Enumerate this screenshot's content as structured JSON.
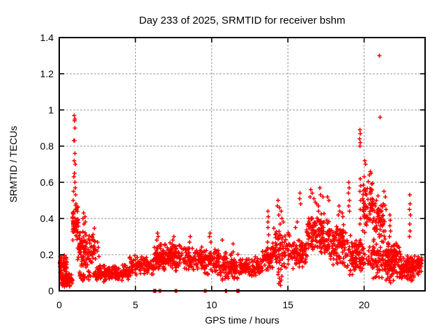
{
  "chart_data": {
    "type": "scatter",
    "title": "Day 233 of 2025, SRMTID for receiver bshm",
    "xlabel": "GPS time / hours",
    "ylabel": "SRMTID / TECUs",
    "xlim": [
      0,
      24
    ],
    "ylim": [
      0,
      1.4
    ],
    "xticks": [
      "0",
      "5",
      "10",
      "15",
      "20"
    ],
    "xtick_values": [
      0,
      5,
      10,
      15,
      20
    ],
    "yticks": [
      "0",
      "0.2",
      "0.4",
      "0.6",
      "0.8",
      "1",
      "1.2",
      "1.4"
    ],
    "ytick_values": [
      0,
      0.2,
      0.4,
      0.6,
      0.8,
      1.0,
      1.2,
      1.4
    ],
    "grid": "dashed",
    "legend": "none",
    "marker": {
      "shape": "plus",
      "size": 7,
      "color": "#ff0000"
    },
    "colors": {
      "marker": "#ff0000",
      "grid": "#999999",
      "axis": "#000000",
      "text": "#000000",
      "background": "#ffffff"
    },
    "series": [
      {
        "name": "SRMTID",
        "points": [
          [
            0.98,
            0.97
          ],
          [
            1.03,
            0.95
          ],
          [
            1.0,
            0.94
          ],
          [
            1.02,
            0.9
          ],
          [
            0.97,
            0.83
          ],
          [
            1.01,
            0.83
          ],
          [
            1.02,
            0.76
          ],
          [
            0.98,
            0.72
          ],
          [
            1.05,
            0.7
          ],
          [
            1.0,
            0.65
          ],
          [
            0.96,
            0.63
          ],
          [
            1.03,
            0.6
          ],
          [
            1.05,
            0.57
          ],
          [
            0.94,
            0.55
          ],
          [
            1.07,
            0.53
          ],
          [
            0.92,
            0.5
          ],
          [
            1.1,
            0.48
          ],
          [
            1.6,
            0.43
          ],
          [
            1.68,
            0.41
          ],
          [
            1.55,
            0.4
          ],
          [
            1.72,
            0.38
          ],
          [
            1.63,
            0.37
          ],
          [
            2.52,
            0.27
          ],
          [
            2.56,
            0.24
          ],
          [
            2.48,
            0.22
          ],
          [
            2.6,
            0.19
          ],
          [
            6.45,
            0.32
          ],
          [
            6.5,
            0.3
          ],
          [
            6.4,
            0.28
          ],
          [
            7.52,
            0.3
          ],
          [
            7.45,
            0.28
          ],
          [
            8.6,
            0.3
          ],
          [
            8.55,
            0.27
          ],
          [
            9.9,
            0.32
          ],
          [
            9.85,
            0.3
          ],
          [
            9.95,
            0.27
          ],
          [
            10.7,
            0.28
          ],
          [
            11.4,
            0.26
          ],
          [
            13.7,
            0.44
          ],
          [
            13.72,
            0.41
          ],
          [
            13.68,
            0.38
          ],
          [
            13.7,
            0.35
          ],
          [
            13.74,
            0.31
          ],
          [
            13.66,
            0.27
          ],
          [
            13.7,
            0.23
          ],
          [
            13.72,
            0.19
          ],
          [
            14.35,
            0.5
          ],
          [
            14.3,
            0.47
          ],
          [
            14.45,
            0.46
          ],
          [
            14.55,
            0.44
          ],
          [
            14.4,
            0.42
          ],
          [
            14.6,
            0.4
          ],
          [
            14.7,
            0.38
          ],
          [
            14.5,
            0.37
          ],
          [
            14.4,
            0.04
          ],
          [
            14.5,
            0.05
          ],
          [
            14.45,
            0.07
          ],
          [
            14.55,
            0.06
          ],
          [
            14.6,
            0.08
          ],
          [
            14.35,
            0.09
          ],
          [
            14.52,
            0.03
          ],
          [
            15.8,
            0.54
          ],
          [
            15.78,
            0.51
          ],
          [
            15.85,
            0.48
          ],
          [
            15.6,
            0.38
          ],
          [
            15.5,
            0.35
          ],
          [
            16.5,
            0.56
          ],
          [
            16.6,
            0.54
          ],
          [
            16.45,
            0.52
          ],
          [
            16.7,
            0.51
          ],
          [
            16.8,
            0.49
          ],
          [
            17.1,
            0.57
          ],
          [
            17.15,
            0.53
          ],
          [
            17.3,
            0.52
          ],
          [
            17.6,
            0.52
          ],
          [
            17.7,
            0.5
          ],
          [
            16.9,
            0.48
          ],
          [
            17.0,
            0.47
          ],
          [
            18.35,
            0.47
          ],
          [
            18.4,
            0.44
          ],
          [
            18.3,
            0.42
          ],
          [
            18.55,
            0.43
          ],
          [
            18.6,
            0.41
          ],
          [
            19.0,
            0.6
          ],
          [
            19.02,
            0.57
          ],
          [
            18.98,
            0.54
          ],
          [
            19.05,
            0.5
          ],
          [
            19.0,
            0.47
          ],
          [
            19.04,
            0.44
          ],
          [
            19.72,
            0.89
          ],
          [
            19.75,
            0.87
          ],
          [
            19.7,
            0.84
          ],
          [
            19.74,
            0.82
          ],
          [
            19.73,
            0.8
          ],
          [
            19.75,
            0.62
          ],
          [
            19.78,
            0.58
          ],
          [
            19.72,
            0.55
          ],
          [
            19.76,
            0.5
          ],
          [
            19.74,
            0.45
          ],
          [
            19.78,
            0.4
          ],
          [
            19.73,
            0.37
          ],
          [
            20.05,
            0.72
          ],
          [
            20.1,
            0.7
          ],
          [
            20.4,
            0.66
          ],
          [
            20.45,
            0.65
          ],
          [
            20.35,
            0.64
          ],
          [
            20.0,
            0.63
          ],
          [
            21.0,
            1.3
          ],
          [
            21.05,
            0.96
          ],
          [
            21.3,
            0.55
          ],
          [
            21.4,
            0.52
          ],
          [
            21.25,
            0.48
          ],
          [
            21.45,
            0.45
          ],
          [
            21.7,
            0.42
          ],
          [
            21.72,
            0.39
          ],
          [
            21.68,
            0.36
          ],
          [
            21.74,
            0.33
          ],
          [
            21.66,
            0.3
          ],
          [
            23.0,
            0.53
          ],
          [
            23.02,
            0.48
          ],
          [
            22.98,
            0.45
          ],
          [
            23.04,
            0.42
          ],
          [
            23.0,
            0.37
          ],
          [
            23.02,
            0.33
          ],
          [
            22.98,
            0.3
          ],
          [
            6.2,
            0
          ],
          [
            6.24,
            0
          ],
          [
            6.28,
            0
          ],
          [
            6.32,
            0
          ],
          [
            6.55,
            0
          ],
          [
            6.65,
            0
          ],
          [
            7.62,
            0
          ],
          [
            7.7,
            0
          ],
          [
            9.52,
            0
          ],
          [
            9.62,
            0
          ],
          [
            10.9,
            0
          ],
          [
            10.94,
            0
          ],
          [
            10.98,
            0
          ],
          [
            11.65,
            0
          ],
          [
            11.7,
            0
          ],
          [
            11.75,
            0
          ],
          [
            11.79,
            0
          ]
        ],
        "bands": [
          {
            "x0": 0.02,
            "x1": 0.5,
            "y0": 0.07,
            "y1": 0.22,
            "n": 60
          },
          {
            "x0": 0.1,
            "x1": 0.9,
            "y0": 0.02,
            "y1": 0.1,
            "n": 90
          },
          {
            "x0": 0.85,
            "x1": 1.25,
            "y0": 0.25,
            "y1": 0.5,
            "n": 50
          },
          {
            "x0": 1.2,
            "x1": 2.4,
            "y0": 0.1,
            "y1": 0.35,
            "n": 110
          },
          {
            "x0": 1.3,
            "x1": 2.4,
            "y0": 0.05,
            "y1": 0.12,
            "n": 30
          },
          {
            "x0": 2.4,
            "x1": 4.6,
            "y0": 0.04,
            "y1": 0.15,
            "n": 170
          },
          {
            "x0": 4.6,
            "x1": 6.2,
            "y0": 0.08,
            "y1": 0.2,
            "n": 110
          },
          {
            "x0": 6.2,
            "x1": 7.0,
            "y0": 0.1,
            "y1": 0.28,
            "n": 90
          },
          {
            "x0": 7.0,
            "x1": 8.0,
            "y0": 0.1,
            "y1": 0.27,
            "n": 90
          },
          {
            "x0": 8.0,
            "x1": 9.5,
            "y0": 0.1,
            "y1": 0.25,
            "n": 110
          },
          {
            "x0": 9.5,
            "x1": 10.5,
            "y0": 0.08,
            "y1": 0.25,
            "n": 90
          },
          {
            "x0": 10.5,
            "x1": 11.8,
            "y0": 0.05,
            "y1": 0.22,
            "n": 100
          },
          {
            "x0": 11.8,
            "x1": 13.3,
            "y0": 0.07,
            "y1": 0.19,
            "n": 110
          },
          {
            "x0": 13.3,
            "x1": 14.0,
            "y0": 0.1,
            "y1": 0.25,
            "n": 60
          },
          {
            "x0": 14.0,
            "x1": 15.2,
            "y0": 0.1,
            "y1": 0.35,
            "n": 90
          },
          {
            "x0": 15.2,
            "x1": 16.2,
            "y0": 0.1,
            "y1": 0.3,
            "n": 90
          },
          {
            "x0": 16.2,
            "x1": 17.8,
            "y0": 0.18,
            "y1": 0.45,
            "n": 150
          },
          {
            "x0": 17.8,
            "x1": 18.8,
            "y0": 0.12,
            "y1": 0.38,
            "n": 100
          },
          {
            "x0": 18.8,
            "x1": 19.9,
            "y0": 0.08,
            "y1": 0.32,
            "n": 100
          },
          {
            "x0": 19.9,
            "x1": 20.6,
            "y0": 0.3,
            "y1": 0.62,
            "n": 70
          },
          {
            "x0": 19.9,
            "x1": 20.6,
            "y0": 0.1,
            "y1": 0.28,
            "n": 25
          },
          {
            "x0": 20.6,
            "x1": 21.4,
            "y0": 0.25,
            "y1": 0.56,
            "n": 55
          },
          {
            "x0": 20.6,
            "x1": 21.4,
            "y0": 0.05,
            "y1": 0.3,
            "n": 60
          },
          {
            "x0": 21.4,
            "x1": 22.4,
            "y0": 0.04,
            "y1": 0.28,
            "n": 130
          },
          {
            "x0": 22.4,
            "x1": 23.3,
            "y0": 0.05,
            "y1": 0.2,
            "n": 110
          },
          {
            "x0": 23.3,
            "x1": 23.8,
            "y0": 0.08,
            "y1": 0.2,
            "n": 40
          }
        ]
      }
    ]
  }
}
